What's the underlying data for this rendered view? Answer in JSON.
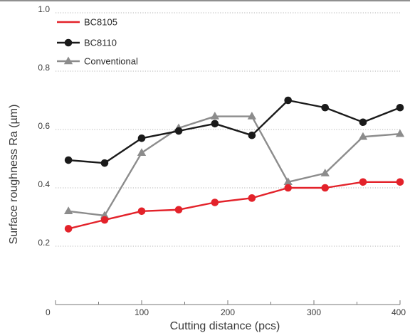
{
  "chart_data": {
    "type": "line",
    "xlabel": "Cutting distance (pcs)",
    "ylabel": "Surface roughness Ra (µm)",
    "xlim": [
      0,
      400
    ],
    "ylim": [
      0,
      1.0
    ],
    "x_ticks": [
      0,
      100,
      200,
      300,
      400
    ],
    "y_ticks": [
      0.2,
      0.4,
      0.6,
      0.8,
      1.0
    ],
    "x_tick_labels": [
      "0",
      "100",
      "200",
      "300",
      "400"
    ],
    "y_tick_labels": [
      "0.2",
      "0.4",
      "0.6",
      "0.8",
      "1.0"
    ],
    "grid": "horizontal dotted",
    "legend_position": "top-left",
    "series": [
      {
        "name": "BC8105",
        "color": "#e3222a",
        "marker": "circle",
        "x": [
          15,
          57,
          100,
          143,
          185,
          228,
          270,
          313,
          357,
          400
        ],
        "y": [
          0.26,
          0.29,
          0.32,
          0.325,
          0.35,
          0.365,
          0.4,
          0.4,
          0.42,
          0.42
        ]
      },
      {
        "name": "BC8110",
        "color": "#1a1a1a",
        "marker": "circle",
        "x": [
          15,
          57,
          100,
          143,
          185,
          228,
          270,
          313,
          357,
          400
        ],
        "y": [
          0.495,
          0.485,
          0.57,
          0.595,
          0.62,
          0.58,
          0.7,
          0.675,
          0.625,
          0.675
        ]
      },
      {
        "name": "Conventional",
        "color": "#8c8c8c",
        "marker": "triangle",
        "x": [
          15,
          57,
          100,
          143,
          185,
          228,
          270,
          313,
          357,
          400
        ],
        "y": [
          0.32,
          0.305,
          0.52,
          0.605,
          0.645,
          0.645,
          0.42,
          0.45,
          0.575,
          0.585
        ]
      }
    ]
  }
}
